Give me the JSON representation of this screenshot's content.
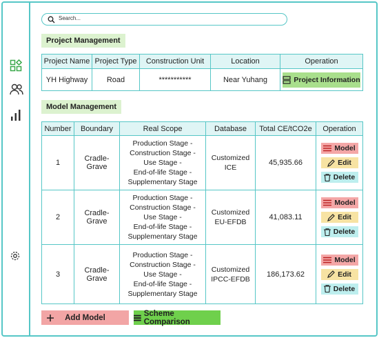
{
  "search": {
    "placeholder": "Search..."
  },
  "project_management": {
    "title": "Project Management",
    "columns": [
      "Project Name",
      "Project Type",
      "Construction Unit",
      "Location",
      "Operation"
    ],
    "rows": [
      [
        "YH Highway",
        "Road",
        "***********",
        "Near Yuhang"
      ]
    ],
    "action": "Project Information"
  },
  "model_management": {
    "title": "Model Management",
    "columns": [
      "Number",
      "Boundary",
      "Real Scope",
      "Database",
      "Total CE/tCO2e",
      "Operation"
    ],
    "rows": [
      {
        "number": "1",
        "boundary": "Cradle-Grave",
        "real_scope": [
          "Production Stage -",
          "Construction Stage -",
          "Use Stage -",
          "End-of-life Stage -",
          "Supplementary Stage"
        ],
        "database": [
          "Customized",
          "ICE"
        ],
        "total": "45,935.66"
      },
      {
        "number": "2",
        "boundary": "Cradle-Grave",
        "real_scope": [
          "Production Stage -",
          "Construction Stage -",
          "Use Stage -",
          "End-of-life Stage -",
          "Supplementary Stage"
        ],
        "database": [
          "Customized",
          "EU-EFDB"
        ],
        "total": "41,083.11"
      },
      {
        "number": "3",
        "boundary": "Cradle-Grave",
        "real_scope": [
          "Production Stage -",
          "Construction Stage -",
          "Use Stage -",
          "End-of-life Stage -",
          "Supplementary Stage"
        ],
        "database": [
          "Customized",
          "IPCC-EFDB"
        ],
        "total": "186,173.62"
      }
    ],
    "actions": [
      "Model",
      "Edit",
      "Delete"
    ]
  },
  "footer_buttons": [
    "Add Model",
    "Scheme Comparison"
  ]
}
